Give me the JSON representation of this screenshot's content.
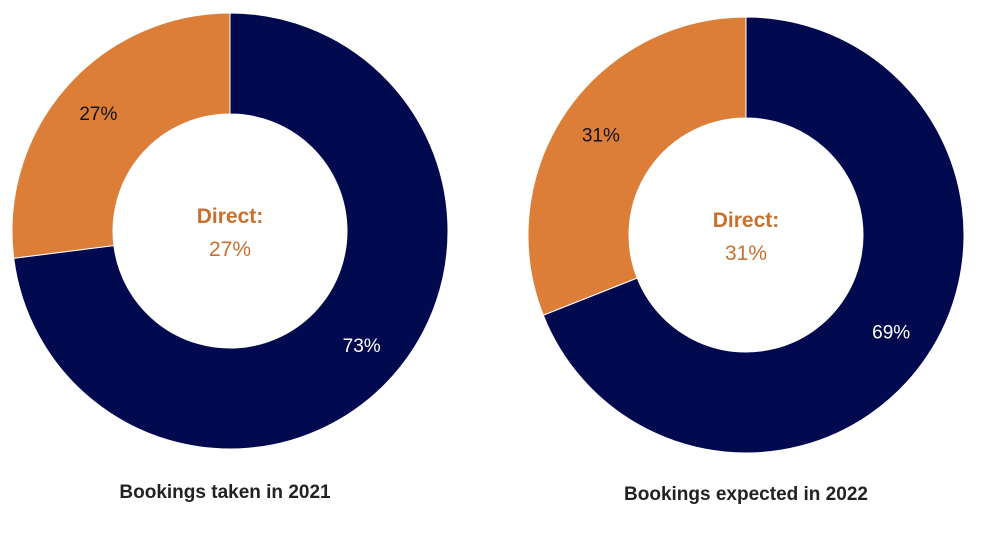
{
  "colors": {
    "direct": "#DC7E38",
    "other": "#010A4F",
    "center_text": "#C8702E",
    "label_dark": "#111111",
    "label_light": "#ffffff",
    "caption": "#222222"
  },
  "chart_data": [
    {
      "type": "pie",
      "title": "",
      "caption": "Bookings taken in 2021",
      "center_title": "Direct:",
      "center_value": "27%",
      "slices": [
        {
          "value": 27,
          "label": "27%"
        },
        {
          "value": 73,
          "label": "73%"
        }
      ]
    },
    {
      "type": "pie",
      "title": "",
      "caption": "Bookings expected in 2022",
      "center_title": "Direct:",
      "center_value": "31%",
      "slices": [
        {
          "value": 31,
          "label": "31%"
        },
        {
          "value": 69,
          "label": "69%"
        }
      ]
    }
  ]
}
